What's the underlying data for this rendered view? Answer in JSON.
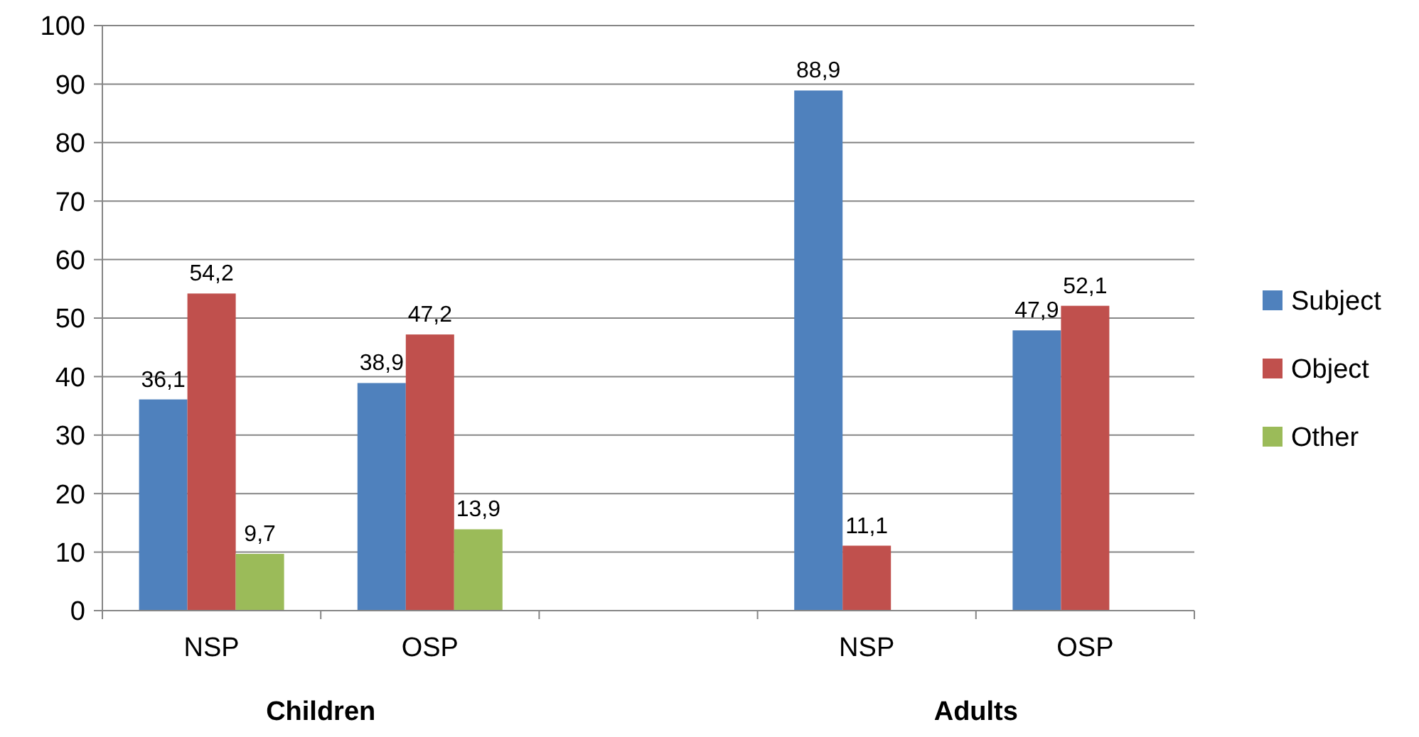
{
  "chart_data": {
    "type": "bar",
    "categories": [
      "NSP",
      "OSP",
      null,
      "NSP",
      "OSP"
    ],
    "series": [
      {
        "name": "Subject",
        "color": "#4f81bd",
        "values": [
          36.1,
          38.9,
          null,
          88.9,
          47.9
        ],
        "value_labels": [
          "36,1",
          "38,9",
          null,
          "88,9",
          "47,9"
        ]
      },
      {
        "name": "Object",
        "color": "#c0504d",
        "values": [
          54.2,
          47.2,
          null,
          11.1,
          52.1
        ],
        "value_labels": [
          "54,2",
          "47,2",
          null,
          "11,1",
          "52,1"
        ]
      },
      {
        "name": "Other",
        "color": "#9bbb59",
        "values": [
          9.7,
          13.9,
          null,
          null,
          null
        ],
        "value_labels": [
          "9,7",
          "13,9",
          null,
          null,
          null
        ]
      }
    ],
    "annotations": [
      "Children",
      "Adults"
    ],
    "ylim": [
      0,
      100
    ],
    "yticks": [
      0,
      10,
      20,
      30,
      40,
      50,
      60,
      70,
      80,
      90,
      100
    ],
    "grid": "y",
    "legend": "right"
  }
}
